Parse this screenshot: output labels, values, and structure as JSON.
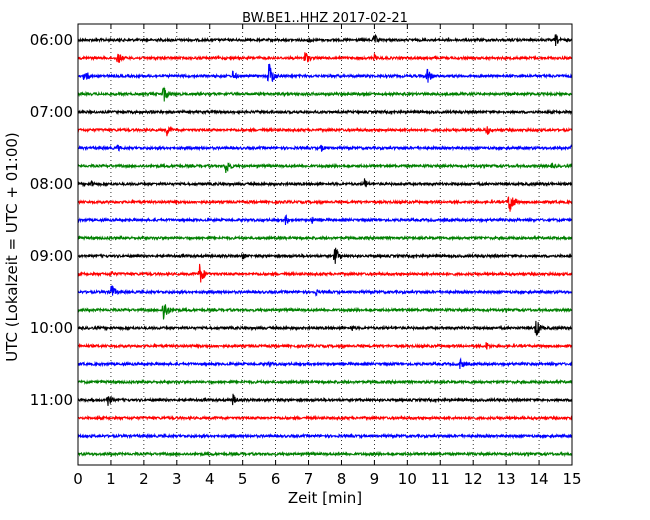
{
  "chart_data": {
    "type": "line",
    "subtype": "seismogram-helicorder",
    "title": "BW.BE1..HHZ 2017-02-21",
    "xlabel": "Zeit  [min]",
    "ylabel": "UTC (Lokalzeit = UTC + 01:00)",
    "xlim": [
      0,
      15
    ],
    "x_ticks": [
      "0",
      "1",
      "2",
      "3",
      "4",
      "5",
      "6",
      "7",
      "8",
      "9",
      "10",
      "11",
      "12",
      "13",
      "14",
      "15"
    ],
    "y_tick_labels": [
      "06:00",
      "07:00",
      "08:00",
      "09:00",
      "10:00",
      "11:00"
    ],
    "grid": "vertical dotted at each minute",
    "colors": [
      "#000000",
      "#ff0000",
      "#0000ff",
      "#008000"
    ],
    "traces": [
      {
        "start": "06:00",
        "color": "#000000",
        "events": [
          {
            "t": 9.0,
            "amp": 0.45
          },
          {
            "t": 14.5,
            "amp": 0.5
          },
          {
            "t": 7.0,
            "amp": 0.3
          }
        ]
      },
      {
        "start": "06:15",
        "color": "#ff0000",
        "events": [
          {
            "t": 1.2,
            "amp": 0.55
          },
          {
            "t": 6.9,
            "amp": 0.6
          },
          {
            "t": 9.0,
            "amp": 0.3
          }
        ]
      },
      {
        "start": "06:30",
        "color": "#0000ff",
        "events": [
          {
            "t": 0.2,
            "amp": 0.6
          },
          {
            "t": 5.8,
            "amp": 1.2
          },
          {
            "t": 10.6,
            "amp": 0.7
          },
          {
            "t": 4.7,
            "amp": 0.45
          }
        ]
      },
      {
        "start": "06:45",
        "color": "#008000",
        "events": [
          {
            "t": 2.6,
            "amp": 0.7
          }
        ]
      },
      {
        "start": "07:00",
        "color": "#000000",
        "events": []
      },
      {
        "start": "07:15",
        "color": "#ff0000",
        "events": [
          {
            "t": 2.7,
            "amp": 0.45
          },
          {
            "t": 12.4,
            "amp": 0.5
          }
        ]
      },
      {
        "start": "07:30",
        "color": "#0000ff",
        "events": [
          {
            "t": 1.2,
            "amp": 0.3
          },
          {
            "t": 7.4,
            "amp": 0.3
          },
          {
            "t": 15.0,
            "amp": 0.4
          }
        ]
      },
      {
        "start": "07:45",
        "color": "#008000",
        "events": [
          {
            "t": 4.5,
            "amp": 0.7
          },
          {
            "t": 14.4,
            "amp": 0.3
          }
        ]
      },
      {
        "start": "08:00",
        "color": "#000000",
        "events": [
          {
            "t": 0.4,
            "amp": 0.3
          },
          {
            "t": 8.7,
            "amp": 0.45
          }
        ]
      },
      {
        "start": "08:15",
        "color": "#ff0000",
        "events": [
          {
            "t": 13.1,
            "amp": 1.1
          }
        ]
      },
      {
        "start": "08:30",
        "color": "#0000ff",
        "events": [
          {
            "t": 6.3,
            "amp": 0.4
          },
          {
            "t": 7.1,
            "amp": 0.3
          }
        ]
      },
      {
        "start": "08:45",
        "color": "#008000",
        "events": []
      },
      {
        "start": "09:00",
        "color": "#000000",
        "events": [
          {
            "t": 7.8,
            "amp": 0.75
          },
          {
            "t": 5.0,
            "amp": 0.3
          }
        ]
      },
      {
        "start": "09:15",
        "color": "#ff0000",
        "events": [
          {
            "t": 3.7,
            "amp": 0.9
          },
          {
            "t": 1.0,
            "amp": 0.3
          }
        ]
      },
      {
        "start": "09:30",
        "color": "#0000ff",
        "events": [
          {
            "t": 1.0,
            "amp": 0.75
          },
          {
            "t": 7.2,
            "amp": 0.3
          }
        ]
      },
      {
        "start": "09:45",
        "color": "#008000",
        "events": [
          {
            "t": 2.6,
            "amp": 1.0
          }
        ]
      },
      {
        "start": "10:00",
        "color": "#000000",
        "events": [
          {
            "t": 13.9,
            "amp": 0.8
          },
          {
            "t": 8.3,
            "amp": 0.3
          }
        ]
      },
      {
        "start": "10:15",
        "color": "#ff0000",
        "events": [
          {
            "t": 12.4,
            "amp": 0.35
          }
        ]
      },
      {
        "start": "10:30",
        "color": "#0000ff",
        "events": [
          {
            "t": 11.6,
            "amp": 0.45
          },
          {
            "t": 5.8,
            "amp": 0.3
          }
        ]
      },
      {
        "start": "10:45",
        "color": "#008000",
        "events": []
      },
      {
        "start": "11:00",
        "color": "#000000",
        "events": [
          {
            "t": 0.9,
            "amp": 0.55
          },
          {
            "t": 4.7,
            "amp": 0.5
          }
        ]
      },
      {
        "start": "11:15",
        "color": "#ff0000",
        "events": []
      },
      {
        "start": "11:30",
        "color": "#0000ff",
        "events": []
      },
      {
        "start": "11:45",
        "color": "#008000",
        "events": []
      }
    ]
  }
}
